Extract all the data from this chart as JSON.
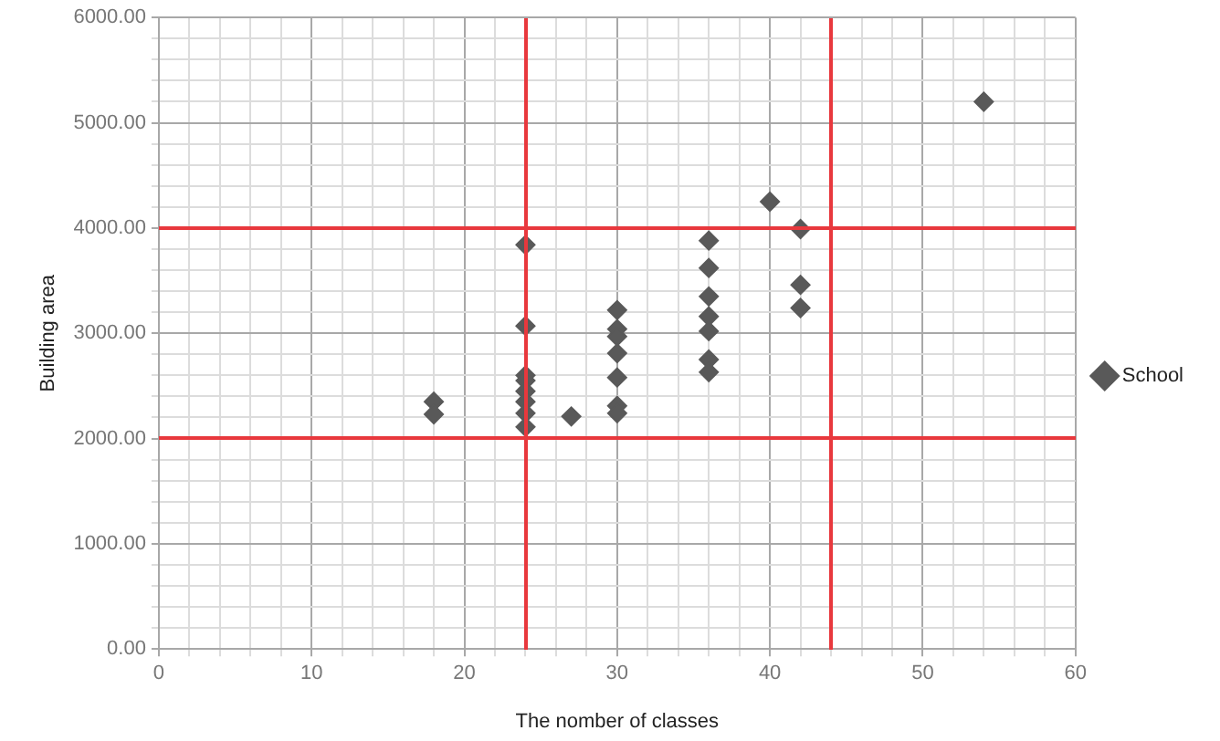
{
  "chart_data": {
    "type": "scatter",
    "xlabel": "The nomber of classes",
    "ylabel": "Building area",
    "series": [
      {
        "name": "School",
        "color": "#595959",
        "x": [
          18,
          18,
          24,
          24,
          24,
          24,
          24,
          24,
          24,
          24,
          27,
          30,
          30,
          30,
          30,
          30,
          30,
          30,
          36,
          36,
          36,
          36,
          36,
          36,
          36,
          40,
          42,
          42,
          42,
          54
        ],
        "values": [
          2350,
          2230,
          3840,
          3070,
          2600,
          2550,
          2450,
          2350,
          2240,
          2110,
          2210,
          3220,
          3040,
          2970,
          2810,
          2580,
          2310,
          2240,
          3880,
          3620,
          3350,
          3160,
          3020,
          2750,
          2630,
          4250,
          3990,
          3460,
          3240,
          5200
        ]
      }
    ],
    "xlim": [
      0,
      60
    ],
    "xticks": [
      0,
      {
        "value": 2,
        "label": null
      },
      {
        "value": 4,
        "label": null
      },
      {
        "value": 6,
        "label": null
      },
      {
        "value": 8,
        "label": null
      },
      10,
      {
        "value": 12,
        "label": null
      },
      {
        "value": 14,
        "label": null
      },
      {
        "value": 16,
        "label": null
      },
      {
        "value": 18,
        "label": null
      },
      20,
      {
        "value": 22,
        "label": null
      },
      {
        "value": 24,
        "label": null
      },
      {
        "value": 26,
        "label": null
      },
      {
        "value": 28,
        "label": null
      },
      30,
      {
        "value": 32,
        "label": null
      },
      {
        "value": 34,
        "label": null
      },
      {
        "value": 36,
        "label": null
      },
      {
        "value": 38,
        "label": null
      },
      40,
      {
        "value": 42,
        "label": null
      },
      {
        "value": 44,
        "label": null
      },
      {
        "value": 46,
        "label": null
      },
      {
        "value": 48,
        "label": null
      },
      50,
      {
        "value": 52,
        "label": null
      },
      {
        "value": 54,
        "label": null
      },
      {
        "value": 56,
        "label": null
      },
      {
        "value": 58,
        "label": null
      },
      60
    ],
    "ylim": [
      0,
      6000
    ],
    "yticks": [
      {
        "value": 0,
        "label": "0.00"
      },
      {
        "value": 200,
        "label": null
      },
      {
        "value": 400,
        "label": null
      },
      {
        "value": 600,
        "label": null
      },
      {
        "value": 800,
        "label": null
      },
      {
        "value": 1000,
        "label": "1000.00"
      },
      {
        "value": 1200,
        "label": null
      },
      {
        "value": 1400,
        "label": null
      },
      {
        "value": 1600,
        "label": null
      },
      {
        "value": 1800,
        "label": null
      },
      {
        "value": 2000,
        "label": "2000.00"
      },
      {
        "value": 2200,
        "label": null
      },
      {
        "value": 2400,
        "label": null
      },
      {
        "value": 2600,
        "label": null
      },
      {
        "value": 2800,
        "label": null
      },
      {
        "value": 3000,
        "label": "3000.00"
      },
      {
        "value": 3200,
        "label": null
      },
      {
        "value": 3400,
        "label": null
      },
      {
        "value": 3600,
        "label": null
      },
      {
        "value": 3800,
        "label": null
      },
      {
        "value": 4000,
        "label": "4000.00"
      },
      {
        "value": 4200,
        "label": null
      },
      {
        "value": 4400,
        "label": null
      },
      {
        "value": 4600,
        "label": null
      },
      {
        "value": 4800,
        "label": null
      },
      {
        "value": 5000,
        "label": "5000.00"
      },
      {
        "value": 5200,
        "label": null
      },
      {
        "value": 5400,
        "label": null
      },
      {
        "value": 5600,
        "label": null
      },
      {
        "value": 5800,
        "label": null
      },
      {
        "value": 6000,
        "label": "6000.00"
      }
    ],
    "ref_lines": [
      {
        "axis": "x",
        "value": 24,
        "color": "#e8383d"
      },
      {
        "axis": "x",
        "value": 44,
        "color": "#e8383d"
      },
      {
        "axis": "y",
        "value": 2000,
        "color": "#e8383d"
      },
      {
        "axis": "y",
        "value": 4000,
        "color": "#e8383d"
      }
    ],
    "grid": true,
    "legend": "right",
    "marker": "diamond"
  }
}
